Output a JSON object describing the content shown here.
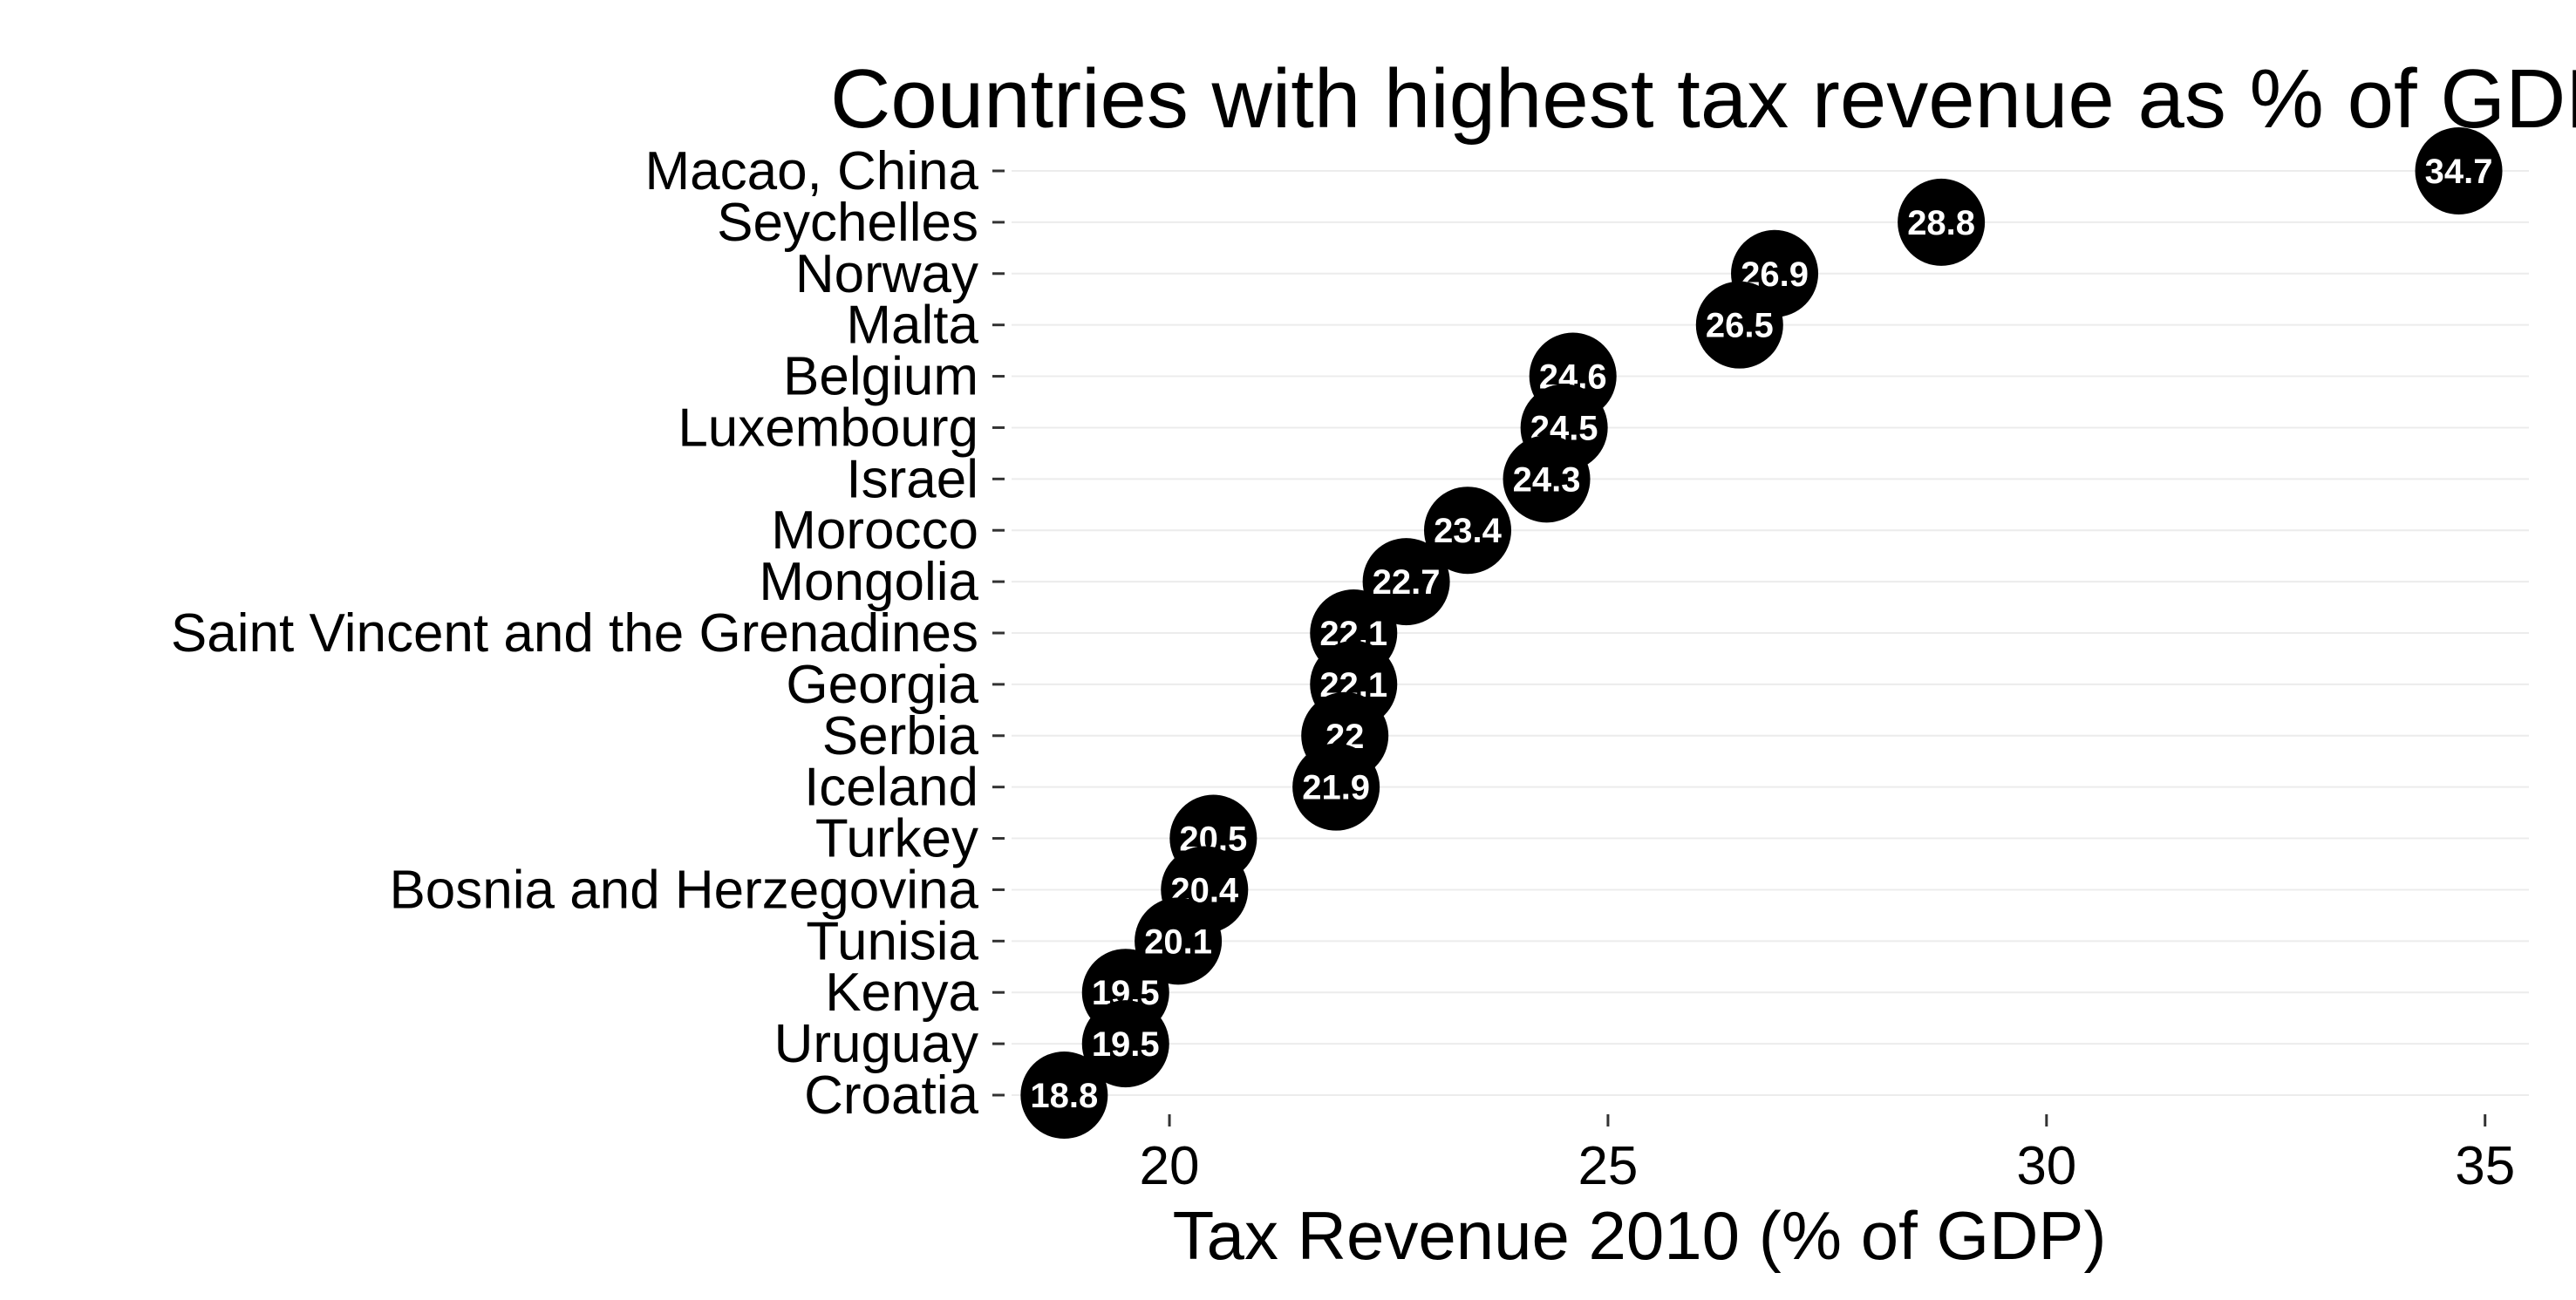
{
  "chart_data": {
    "type": "scatter",
    "title": "Countries with highest tax revenue as % of GDP",
    "xlabel": "Tax Revenue 2010 (% of GDP)",
    "ylabel": "",
    "xlim": [
      18.2,
      35.5
    ],
    "x_ticks": [
      "20",
      "25",
      "30",
      "35"
    ],
    "grid": true,
    "legend": "none",
    "colors": {
      "point": "#000000",
      "label": "#ffffff",
      "grid": "#ececec",
      "text": "#000000"
    },
    "points": [
      {
        "country": "Macao, China",
        "value": 34.7,
        "label": "34.7"
      },
      {
        "country": "Seychelles",
        "value": 28.8,
        "label": "28.8"
      },
      {
        "country": "Norway",
        "value": 26.9,
        "label": "26.9"
      },
      {
        "country": "Malta",
        "value": 26.5,
        "label": "26.5"
      },
      {
        "country": "Belgium",
        "value": 24.6,
        "label": "24.6"
      },
      {
        "country": "Luxembourg",
        "value": 24.5,
        "label": "24.5"
      },
      {
        "country": "Israel",
        "value": 24.3,
        "label": "24.3"
      },
      {
        "country": "Morocco",
        "value": 23.4,
        "label": "23.4"
      },
      {
        "country": "Mongolia",
        "value": 22.7,
        "label": "22.7"
      },
      {
        "country": "Saint Vincent and the Grenadines",
        "value": 22.1,
        "label": "22.1"
      },
      {
        "country": "Georgia",
        "value": 22.1,
        "label": "22.1"
      },
      {
        "country": "Serbia",
        "value": 22.0,
        "label": "22"
      },
      {
        "country": "Iceland",
        "value": 21.9,
        "label": "21.9"
      },
      {
        "country": "Turkey",
        "value": 20.5,
        "label": "20.5"
      },
      {
        "country": "Bosnia and Herzegovina",
        "value": 20.4,
        "label": "20.4"
      },
      {
        "country": "Tunisia",
        "value": 20.1,
        "label": "20.1"
      },
      {
        "country": "Kenya",
        "value": 19.5,
        "label": "19.5"
      },
      {
        "country": "Uruguay",
        "value": 19.5,
        "label": "19.5"
      },
      {
        "country": "Croatia",
        "value": 18.8,
        "label": "18.8"
      }
    ]
  }
}
